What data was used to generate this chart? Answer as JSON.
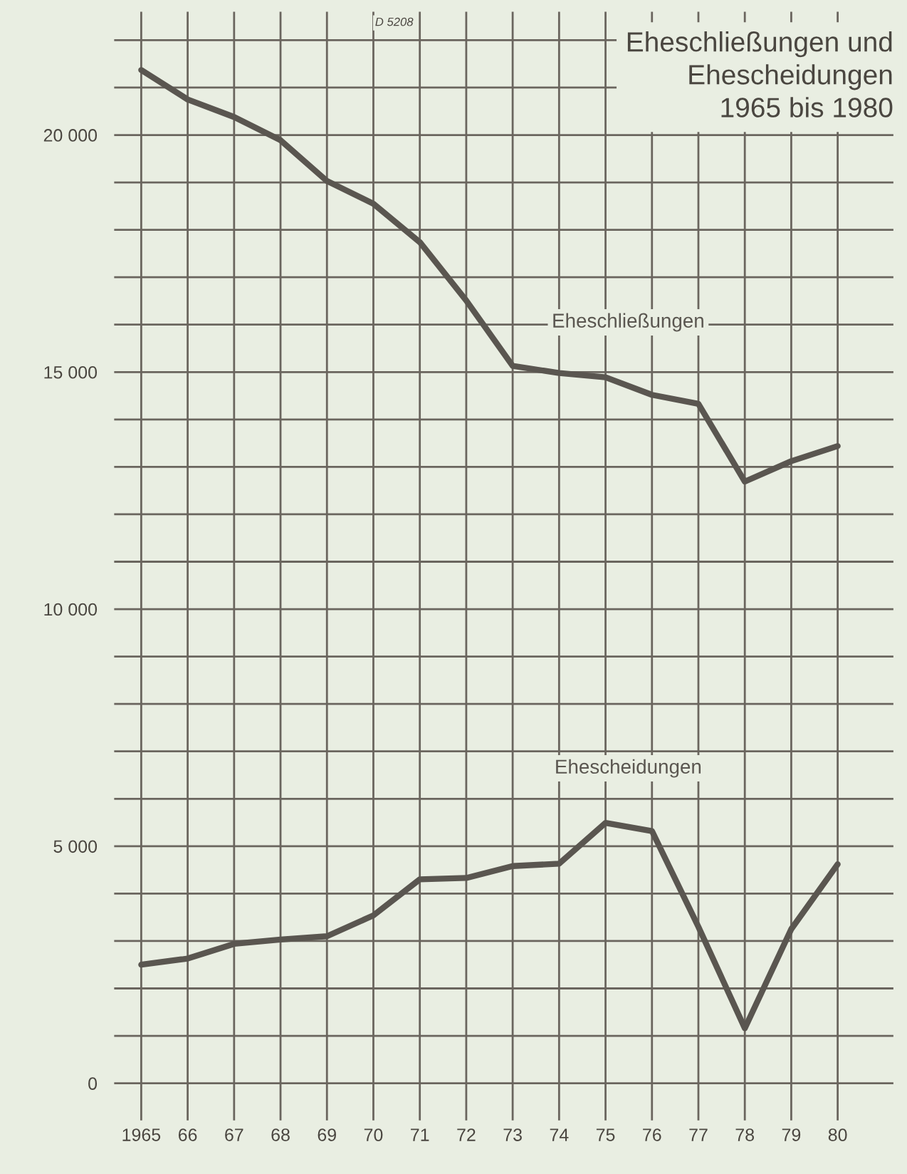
{
  "chart_data": {
    "type": "line",
    "title": "Eheschließungen und\nEhescheidungen\n1965 bis 1980",
    "x": [
      1965,
      1966,
      1967,
      1968,
      1969,
      1970,
      1971,
      1972,
      1973,
      1974,
      1975,
      1976,
      1977,
      1978,
      1979,
      1980
    ],
    "series": [
      {
        "name": "Eheschließungen",
        "color": "#5a5650",
        "values": [
          21370,
          20750,
          20380,
          19890,
          19030,
          18550,
          17740,
          16510,
          15130,
          14980,
          14890,
          14520,
          14330,
          12690,
          13120,
          13440
        ]
      },
      {
        "name": "Ehescheidungen",
        "color": "#5a5650",
        "values": [
          2500,
          2630,
          2940,
          3030,
          3100,
          3540,
          4300,
          4330,
          4580,
          4630,
          5490,
          5320,
          3300,
          1160,
          3250,
          4620
        ]
      }
    ],
    "xlim": [
      1964.4,
      1981.2
    ],
    "ylim": [
      -800,
      22600
    ],
    "xticks": [
      {
        "value": 1965,
        "label": "1965"
      },
      {
        "value": 1966,
        "label": "66"
      },
      {
        "value": 1967,
        "label": "67"
      },
      {
        "value": 1968,
        "label": "68"
      },
      {
        "value": 1969,
        "label": "69"
      },
      {
        "value": 1970,
        "label": "70"
      },
      {
        "value": 1971,
        "label": "71"
      },
      {
        "value": 1972,
        "label": "72"
      },
      {
        "value": 1973,
        "label": "73"
      },
      {
        "value": 1974,
        "label": "74"
      },
      {
        "value": 1975,
        "label": "75"
      },
      {
        "value": 1976,
        "label": "76"
      },
      {
        "value": 1977,
        "label": "77"
      },
      {
        "value": 1978,
        "label": "78"
      },
      {
        "value": 1979,
        "label": "79"
      },
      {
        "value": 1980,
        "label": "80"
      }
    ],
    "yticks": [
      {
        "value": 0,
        "label": "0"
      },
      {
        "value": 1000,
        "label": null
      },
      {
        "value": 2000,
        "label": null
      },
      {
        "value": 3000,
        "label": null
      },
      {
        "value": 4000,
        "label": null
      },
      {
        "value": 5000,
        "label": "5 000"
      },
      {
        "value": 6000,
        "label": null
      },
      {
        "value": 7000,
        "label": null
      },
      {
        "value": 8000,
        "label": null
      },
      {
        "value": 9000,
        "label": null
      },
      {
        "value": 10000,
        "label": "10 000"
      },
      {
        "value": 11000,
        "label": null
      },
      {
        "value": 12000,
        "label": null
      },
      {
        "value": 13000,
        "label": null
      },
      {
        "value": 14000,
        "label": null
      },
      {
        "value": 15000,
        "label": "15 000"
      },
      {
        "value": 16000,
        "label": null
      },
      {
        "value": 17000,
        "label": null
      },
      {
        "value": 18000,
        "label": null
      },
      {
        "value": 19000,
        "label": null
      },
      {
        "value": 20000,
        "label": "20 000"
      },
      {
        "value": 21000,
        "label": null
      },
      {
        "value": 22000,
        "label": null
      }
    ],
    "grid": true,
    "line_style": "solid",
    "marker": "none",
    "annotations": [
      "D 5208"
    ]
  }
}
